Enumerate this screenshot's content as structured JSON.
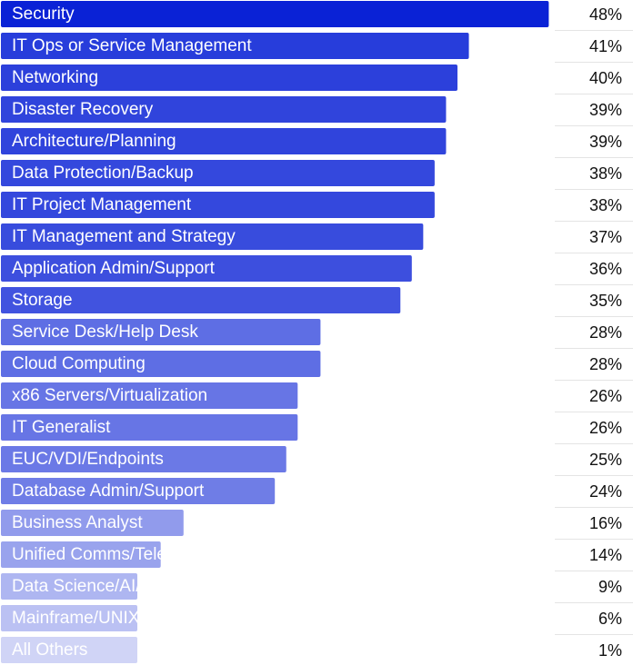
{
  "chart_data": {
    "type": "bar",
    "orientation": "horizontal",
    "title": "",
    "xlabel": "",
    "ylabel": "",
    "xlim": [
      0,
      50
    ],
    "grid": false,
    "legend": "none",
    "value_suffix": "%",
    "categories": [
      "Security",
      "IT Ops or Service Management",
      "Networking",
      "Disaster Recovery",
      "Architecture/Planning",
      "Data Protection/Backup",
      "IT Project Management",
      "IT Management and Strategy",
      "Application Admin/Support",
      "Storage",
      "Service Desk/Help Desk",
      "Cloud Computing",
      "x86 Servers/Virtualization",
      "IT Generalist",
      "EUC/VDI/Endpoints",
      "Database Admin/Support",
      "Business Analyst",
      "Unified Comms/Telephony",
      "Data Science/AI/ML",
      "Mainframe/UNIX systems",
      "All Others"
    ],
    "values": [
      48,
      41,
      40,
      39,
      39,
      38,
      38,
      37,
      36,
      35,
      28,
      28,
      26,
      26,
      25,
      24,
      16,
      14,
      9,
      6,
      1
    ],
    "value_labels": [
      "48%",
      "41%",
      "40%",
      "39%",
      "39%",
      "38%",
      "38%",
      "37%",
      "36%",
      "35%",
      "28%",
      "28%",
      "26%",
      "26%",
      "25%",
      "24%",
      "16%",
      "14%",
      "9%",
      "6%",
      "1%"
    ],
    "colors": {
      "bar_max": "#0a22d6",
      "bar_min": "#d0d4f6",
      "bar_text": "#ffffff",
      "value_text": "#111111",
      "separator": "#e4e4e4"
    }
  }
}
